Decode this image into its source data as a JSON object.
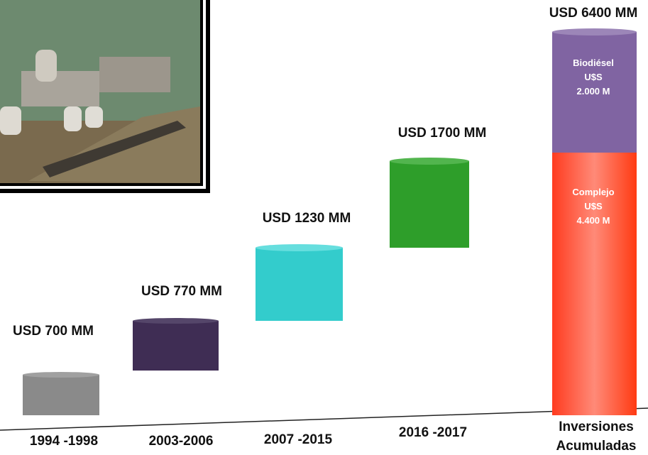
{
  "columns": [
    {
      "amount": "USD 700 MM",
      "period": "1994 -1998"
    },
    {
      "amount": "USD 770 MM",
      "period": "2003-2006"
    },
    {
      "amount": "USD 1230 MM",
      "period": "2007 -2015"
    },
    {
      "amount": "USD 1700 MM",
      "period": "2016 -2017"
    },
    {
      "amount": "USD 6400 MM",
      "period": [
        "Inversiones",
        "Acumuladas"
      ],
      "segments": [
        {
          "lines": [
            "Biodiésel",
            "U$S",
            "2.000 M"
          ]
        },
        {
          "lines": [
            "Complejo",
            "U$S",
            "4.400 M"
          ]
        }
      ]
    }
  ]
}
